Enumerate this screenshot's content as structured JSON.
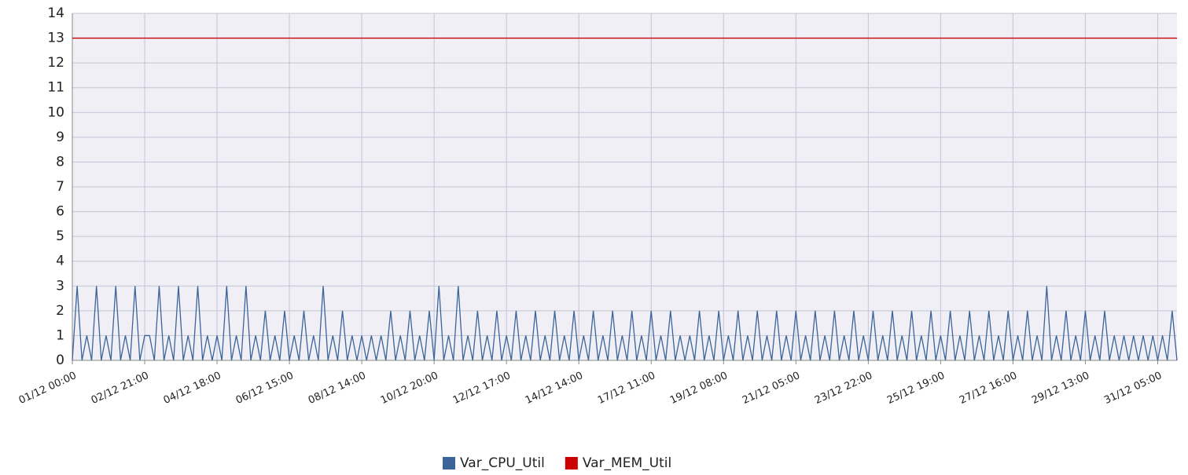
{
  "chart_data": {
    "type": "line",
    "categories": [
      "01/12 00:00",
      null,
      null,
      null,
      null,
      null,
      null,
      null,
      null,
      null,
      null,
      null,
      null,
      null,
      null,
      "02/12 21:00",
      null,
      null,
      null,
      null,
      null,
      null,
      null,
      null,
      null,
      null,
      null,
      null,
      null,
      null,
      "04/12 18:00",
      null,
      null,
      null,
      null,
      null,
      null,
      null,
      null,
      null,
      null,
      null,
      null,
      null,
      null,
      "06/12 15:00",
      null,
      null,
      null,
      null,
      null,
      null,
      null,
      null,
      null,
      null,
      null,
      null,
      null,
      null,
      "08/12 14:00",
      null,
      null,
      null,
      null,
      null,
      null,
      null,
      null,
      null,
      null,
      null,
      null,
      null,
      null,
      "10/12 20:00",
      null,
      null,
      null,
      null,
      null,
      null,
      null,
      null,
      null,
      null,
      null,
      null,
      null,
      null,
      "12/12 17:00",
      null,
      null,
      null,
      null,
      null,
      null,
      null,
      null,
      null,
      null,
      null,
      null,
      null,
      null,
      "14/12 14:00",
      null,
      null,
      null,
      null,
      null,
      null,
      null,
      null,
      null,
      null,
      null,
      null,
      null,
      null,
      "17/12 11:00",
      null,
      null,
      null,
      null,
      null,
      null,
      null,
      null,
      null,
      null,
      null,
      null,
      null,
      null,
      "19/12 08:00",
      null,
      null,
      null,
      null,
      null,
      null,
      null,
      null,
      null,
      null,
      null,
      null,
      null,
      null,
      "21/12 05:00",
      null,
      null,
      null,
      null,
      null,
      null,
      null,
      null,
      null,
      null,
      null,
      null,
      null,
      null,
      "23/12 22:00",
      null,
      null,
      null,
      null,
      null,
      null,
      null,
      null,
      null,
      null,
      null,
      null,
      null,
      null,
      "25/12 19:00",
      null,
      null,
      null,
      null,
      null,
      null,
      null,
      null,
      null,
      null,
      null,
      null,
      null,
      null,
      "27/12 16:00",
      null,
      null,
      null,
      null,
      null,
      null,
      null,
      null,
      null,
      null,
      null,
      null,
      null,
      null,
      "29/12 13:00",
      null,
      null,
      null,
      null,
      null,
      null,
      null,
      null,
      null,
      null,
      null,
      null,
      null,
      null,
      "31/12 05:00",
      null,
      null,
      null,
      null
    ],
    "series": [
      {
        "name": "Var_CPU_Util",
        "color": "#3c6499",
        "values": [
          0,
          3,
          0,
          1,
          0,
          3,
          0,
          1,
          0,
          3,
          0,
          1,
          0,
          3,
          0,
          1,
          1,
          0,
          3,
          0,
          1,
          0,
          3,
          0,
          1,
          0,
          3,
          0,
          1,
          0,
          1,
          0,
          3,
          0,
          1,
          0,
          3,
          0,
          1,
          0,
          2,
          0,
          1,
          0,
          2,
          0,
          1,
          0,
          2,
          0,
          1,
          0,
          3,
          0,
          1,
          0,
          2,
          0,
          1,
          0,
          1,
          0,
          1,
          0,
          1,
          0,
          2,
          0,
          1,
          0,
          2,
          0,
          1,
          0,
          2,
          0,
          3,
          0,
          1,
          0,
          3,
          0,
          1,
          0,
          2,
          0,
          1,
          0,
          2,
          0,
          1,
          0,
          2,
          0,
          1,
          0,
          2,
          0,
          1,
          0,
          2,
          0,
          1,
          0,
          2,
          0,
          1,
          0,
          2,
          0,
          1,
          0,
          2,
          0,
          1,
          0,
          2,
          0,
          1,
          0,
          2,
          0,
          1,
          0,
          2,
          0,
          1,
          0,
          1,
          0,
          2,
          0,
          1,
          0,
          2,
          0,
          1,
          0,
          2,
          0,
          1,
          0,
          2,
          0,
          1,
          0,
          2,
          0,
          1,
          0,
          2,
          0,
          1,
          0,
          2,
          0,
          1,
          0,
          2,
          0,
          1,
          0,
          2,
          0,
          1,
          0,
          2,
          0,
          1,
          0,
          2,
          0,
          1,
          0,
          2,
          0,
          1,
          0,
          2,
          0,
          1,
          0,
          2,
          0,
          1,
          0,
          2,
          0,
          1,
          0,
          2,
          0,
          1,
          0,
          2,
          0,
          1,
          0,
          2,
          0,
          1,
          0,
          3,
          0,
          1,
          0,
          2,
          0,
          1,
          0,
          2,
          0,
          1,
          0,
          2,
          0,
          1,
          0,
          1,
          0,
          1,
          0,
          1,
          0,
          1,
          0,
          1,
          0,
          2,
          0
        ]
      },
      {
        "name": "Var_MEM_Util",
        "color": "#cc0000",
        "values": [
          13,
          13,
          13,
          13,
          13,
          13,
          13,
          13,
          13,
          13,
          13,
          13,
          13,
          13,
          13,
          13,
          13,
          13,
          13,
          13,
          13,
          13,
          13,
          13,
          13,
          13,
          13,
          13,
          13,
          13,
          13,
          13,
          13,
          13,
          13,
          13,
          13,
          13,
          13,
          13,
          13,
          13,
          13,
          13,
          13,
          13,
          13,
          13,
          13,
          13,
          13,
          13,
          13,
          13,
          13,
          13,
          13,
          13,
          13,
          13,
          13,
          13,
          13,
          13,
          13,
          13,
          13,
          13,
          13,
          13,
          13,
          13,
          13,
          13,
          13,
          13,
          13,
          13,
          13,
          13,
          13,
          13,
          13,
          13,
          13,
          13,
          13,
          13,
          13,
          13,
          13,
          13,
          13,
          13,
          13,
          13,
          13,
          13,
          13,
          13,
          13,
          13,
          13,
          13,
          13,
          13,
          13,
          13,
          13,
          13,
          13,
          13,
          13,
          13,
          13,
          13,
          13,
          13,
          13,
          13,
          13,
          13,
          13,
          13,
          13,
          13,
          13,
          13,
          13,
          13,
          13,
          13,
          13,
          13,
          13,
          13,
          13,
          13,
          13,
          13,
          13,
          13,
          13,
          13,
          13,
          13,
          13,
          13,
          13,
          13,
          13,
          13,
          13,
          13,
          13,
          13,
          13,
          13,
          13,
          13,
          13,
          13,
          13,
          13,
          13,
          13,
          13,
          13,
          13,
          13,
          13,
          13,
          13,
          13,
          13,
          13,
          13,
          13,
          13,
          13,
          13,
          13,
          13,
          13,
          13,
          13,
          13,
          13,
          13,
          13,
          13,
          13,
          13,
          13,
          13,
          13,
          13,
          13,
          13,
          13,
          13,
          13,
          13,
          13,
          13,
          13,
          13,
          13,
          13,
          13,
          13,
          13,
          13,
          13,
          13,
          13,
          13,
          13,
          13,
          13,
          13,
          13,
          13,
          13,
          13,
          13,
          13,
          13,
          13,
          13
        ]
      }
    ],
    "ylim": [
      0,
      14
    ],
    "yticks": [
      0,
      1,
      2,
      3,
      4,
      5,
      6,
      7,
      8,
      9,
      10,
      11,
      12,
      13,
      14
    ],
    "grid": true,
    "legend": "bottom"
  }
}
